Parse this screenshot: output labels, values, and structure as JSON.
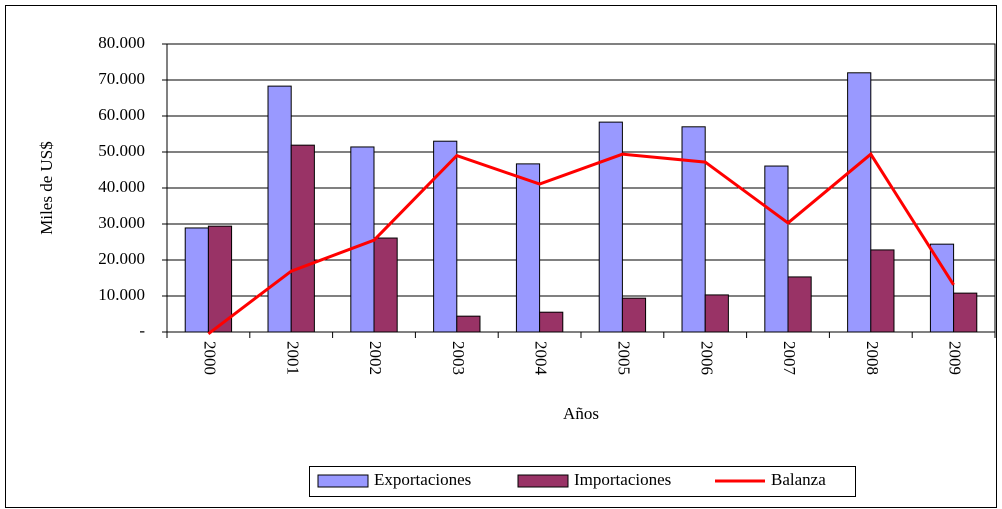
{
  "chart_data": {
    "type": "bar",
    "y_label": "Miles de US$",
    "x_label": "Años",
    "categories": [
      "2000",
      "2001",
      "2002",
      "2003",
      "2004",
      "2005",
      "2006",
      "2007",
      "2008",
      "2009"
    ],
    "series": [
      {
        "name": "Exportaciones",
        "type": "bar",
        "color": "#9999ff",
        "values": [
          28900,
          68300,
          51400,
          53000,
          46700,
          58300,
          57000,
          46100,
          72000,
          24400
        ]
      },
      {
        "name": "Importaciones",
        "type": "bar",
        "color": "#993366",
        "values": [
          29400,
          51900,
          26100,
          4400,
          5500,
          9400,
          10300,
          15300,
          22800,
          10800
        ]
      },
      {
        "name": "Balanza",
        "type": "line",
        "color": "#ff0000",
        "values": [
          -500,
          16900,
          25500,
          49000,
          41100,
          49400,
          47200,
          30300,
          49400,
          13100
        ]
      }
    ],
    "ylim": [
      0,
      80000
    ],
    "yticks": [
      {
        "value": 0,
        "label": "-"
      },
      {
        "value": 10000,
        "label": "10.000"
      },
      {
        "value": 20000,
        "label": "20.000"
      },
      {
        "value": 30000,
        "label": "30.000"
      },
      {
        "value": 40000,
        "label": "40.000"
      },
      {
        "value": 50000,
        "label": "50.000"
      },
      {
        "value": 60000,
        "label": "60.000"
      },
      {
        "value": 70000,
        "label": "70.000"
      },
      {
        "value": 80000,
        "label": "80.000"
      }
    ],
    "grid": true,
    "legend": "bottom"
  }
}
